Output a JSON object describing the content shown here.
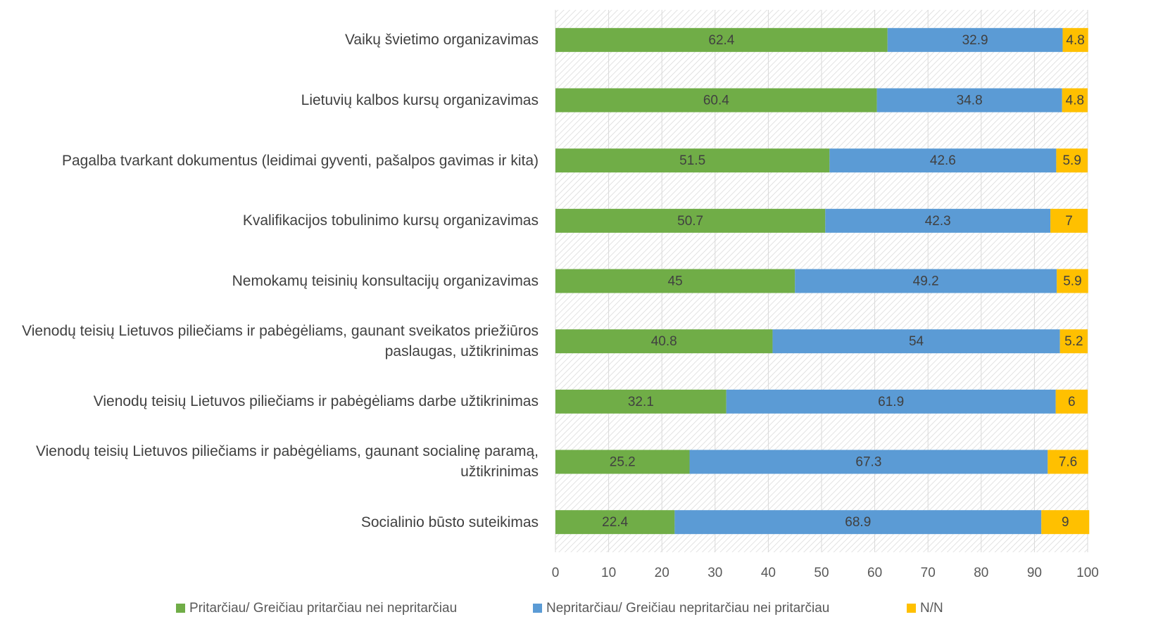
{
  "chart_data": {
    "type": "stacked-bar-horizontal",
    "categories": [
      "Vaikų švietimo organizavimas",
      "Lietuvių kalbos kursų organizavimas",
      "Pagalba tvarkant dokumentus (leidimai gyventi, pašalpos gavimas ir kita)",
      "Kvalifikacijos tobulinimo kursų organizavimas",
      "Nemokamų teisinių konsultacijų organizavimas",
      "Vienodų teisių Lietuvos piliečiams ir pabėgėliams, gaunant sveikatos priežiūros paslaugas, užtikrinimas",
      "Vienodų teisių Lietuvos piliečiams ir pabėgėliams darbe užtikrinimas",
      "Vienodų teisių Lietuvos piliečiams ir pabėgėliams, gaunant socialinę paramą, užtikrinimas",
      "Socialinio būsto suteikimas"
    ],
    "series": [
      {
        "name": "Pritarčiau/ Greičiau pritarčiau nei nepritarčiau",
        "color": "#70ad47",
        "values": [
          62.4,
          60.4,
          51.5,
          50.7,
          45,
          40.8,
          32.1,
          25.2,
          22.4
        ]
      },
      {
        "name": "Nepritarčiau/ Greičiau nepritarčiau nei pritarčiau",
        "color": "#5b9bd5",
        "values": [
          32.9,
          34.8,
          42.6,
          42.3,
          49.2,
          54,
          61.9,
          67.3,
          68.9
        ]
      },
      {
        "name": "N/N",
        "color": "#ffc000",
        "values": [
          4.8,
          4.8,
          5.9,
          7,
          5.9,
          5.2,
          6,
          7.6,
          9
        ]
      }
    ],
    "xlim": [
      0,
      100
    ],
    "xticks": [
      0,
      10,
      20,
      30,
      40,
      50,
      60,
      70,
      80,
      90,
      100
    ],
    "grid": true,
    "legend": "bottom"
  }
}
